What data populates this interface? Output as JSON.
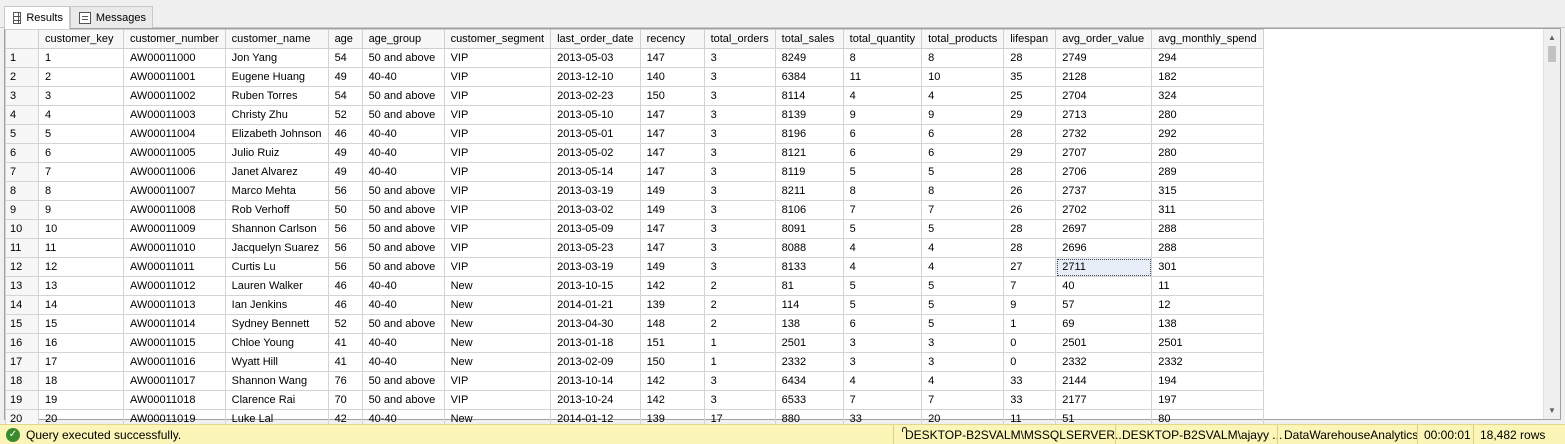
{
  "tabs": [
    {
      "label": "Results",
      "icon": "grid-icon",
      "active": true
    },
    {
      "label": "Messages",
      "icon": "messages-icon",
      "active": false
    }
  ],
  "grid": {
    "columns": [
      "customer_key",
      "customer_number",
      "customer_name",
      "age",
      "age_group",
      "customer_segment",
      "last_order_date",
      "recency",
      "total_orders",
      "total_sales",
      "total_quantity",
      "total_products",
      "lifespan",
      "avg_order_value",
      "avg_monthly_spend"
    ],
    "rows": [
      [
        "1",
        "1",
        "AW00011000",
        "Jon Yang",
        "54",
        "50 and above",
        "VIP",
        "2013-05-03",
        "147",
        "3",
        "8249",
        "8",
        "8",
        "28",
        "2749",
        "294"
      ],
      [
        "2",
        "2",
        "AW00011001",
        "Eugene Huang",
        "49",
        "40-40",
        "VIP",
        "2013-12-10",
        "140",
        "3",
        "6384",
        "11",
        "10",
        "35",
        "2128",
        "182"
      ],
      [
        "3",
        "3",
        "AW00011002",
        "Ruben Torres",
        "54",
        "50 and above",
        "VIP",
        "2013-02-23",
        "150",
        "3",
        "8114",
        "4",
        "4",
        "25",
        "2704",
        "324"
      ],
      [
        "4",
        "4",
        "AW00011003",
        "Christy Zhu",
        "52",
        "50 and above",
        "VIP",
        "2013-05-10",
        "147",
        "3",
        "8139",
        "9",
        "9",
        "29",
        "2713",
        "280"
      ],
      [
        "5",
        "5",
        "AW00011004",
        "Elizabeth Johnson",
        "46",
        "40-40",
        "VIP",
        "2013-05-01",
        "147",
        "3",
        "8196",
        "6",
        "6",
        "28",
        "2732",
        "292"
      ],
      [
        "6",
        "6",
        "AW00011005",
        "Julio Ruiz",
        "49",
        "40-40",
        "VIP",
        "2013-05-02",
        "147",
        "3",
        "8121",
        "6",
        "6",
        "29",
        "2707",
        "280"
      ],
      [
        "7",
        "7",
        "AW00011006",
        "Janet Alvarez",
        "49",
        "40-40",
        "VIP",
        "2013-05-14",
        "147",
        "3",
        "8119",
        "5",
        "5",
        "28",
        "2706",
        "289"
      ],
      [
        "8",
        "8",
        "AW00011007",
        "Marco Mehta",
        "56",
        "50 and above",
        "VIP",
        "2013-03-19",
        "149",
        "3",
        "8211",
        "8",
        "8",
        "26",
        "2737",
        "315"
      ],
      [
        "9",
        "9",
        "AW00011008",
        "Rob Verhoff",
        "50",
        "50 and above",
        "VIP",
        "2013-03-02",
        "149",
        "3",
        "8106",
        "7",
        "7",
        "26",
        "2702",
        "311"
      ],
      [
        "10",
        "10",
        "AW00011009",
        "Shannon Carlson",
        "56",
        "50 and above",
        "VIP",
        "2013-05-09",
        "147",
        "3",
        "8091",
        "5",
        "5",
        "28",
        "2697",
        "288"
      ],
      [
        "11",
        "11",
        "AW00011010",
        "Jacquelyn Suarez",
        "56",
        "50 and above",
        "VIP",
        "2013-05-23",
        "147",
        "3",
        "8088",
        "4",
        "4",
        "28",
        "2696",
        "288"
      ],
      [
        "12",
        "12",
        "AW00011011",
        "Curtis Lu",
        "56",
        "50 and above",
        "VIP",
        "2013-03-19",
        "149",
        "3",
        "8133",
        "4",
        "4",
        "27",
        "2711",
        "301"
      ],
      [
        "13",
        "13",
        "AW00011012",
        "Lauren Walker",
        "46",
        "40-40",
        "New",
        "2013-10-15",
        "142",
        "2",
        "81",
        "5",
        "5",
        "7",
        "40",
        "11"
      ],
      [
        "14",
        "14",
        "AW00011013",
        "Ian Jenkins",
        "46",
        "40-40",
        "New",
        "2014-01-21",
        "139",
        "2",
        "114",
        "5",
        "5",
        "9",
        "57",
        "12"
      ],
      [
        "15",
        "15",
        "AW00011014",
        "Sydney Bennett",
        "52",
        "50 and above",
        "New",
        "2013-04-30",
        "148",
        "2",
        "138",
        "6",
        "5",
        "1",
        "69",
        "138"
      ],
      [
        "16",
        "16",
        "AW00011015",
        "Chloe Young",
        "41",
        "40-40",
        "New",
        "2013-01-18",
        "151",
        "1",
        "2501",
        "3",
        "3",
        "0",
        "2501",
        "2501"
      ],
      [
        "17",
        "17",
        "AW00011016",
        "Wyatt Hill",
        "41",
        "40-40",
        "New",
        "2013-02-09",
        "150",
        "1",
        "2332",
        "3",
        "3",
        "0",
        "2332",
        "2332"
      ],
      [
        "18",
        "18",
        "AW00011017",
        "Shannon Wang",
        "76",
        "50 and above",
        "VIP",
        "2013-10-14",
        "142",
        "3",
        "6434",
        "4",
        "4",
        "33",
        "2144",
        "194"
      ],
      [
        "19",
        "19",
        "AW00011018",
        "Clarence Rai",
        "70",
        "50 and above",
        "VIP",
        "2013-10-24",
        "142",
        "3",
        "6533",
        "7",
        "7",
        "33",
        "2177",
        "197"
      ],
      [
        "20",
        "20",
        "AW00011019",
        "Luke Lal",
        "42",
        "40-40",
        "New",
        "2014-01-12",
        "139",
        "17",
        "880",
        "33",
        "20",
        "11",
        "51",
        "80"
      ]
    ]
  },
  "status": {
    "message": "Query executed successfully.",
    "server": "DESKTOP-B2SVALM\\MSSQLSERVER...",
    "user": "DESKTOP-B2SVALM\\ajayy ...",
    "database": "DataWarehouseAnalytics",
    "elapsed": "00:00:01",
    "rows": "18,482 rows"
  },
  "colors": {
    "status_bg": "#fbf5b8",
    "ok_icon": "#3a8a2e"
  }
}
